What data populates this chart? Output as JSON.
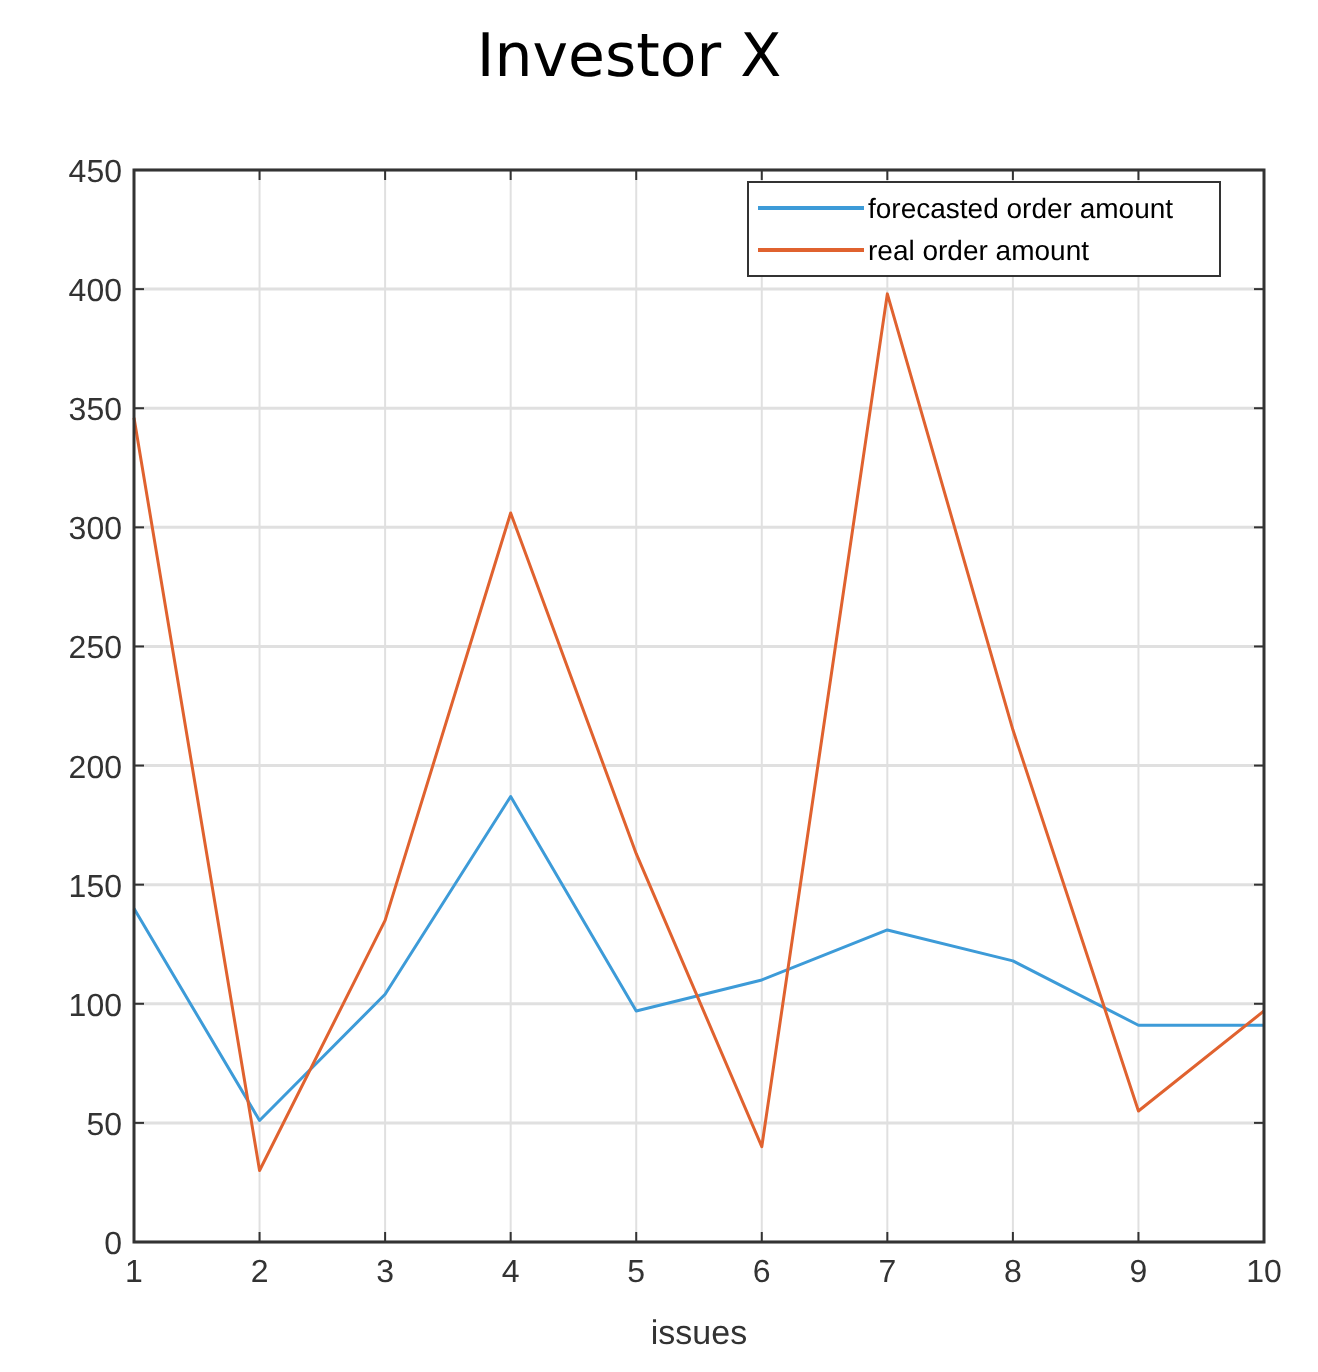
{
  "chart_data": {
    "type": "line",
    "title": "Investor X",
    "xlabel": "issues",
    "x": [
      1,
      2,
      3,
      4,
      5,
      6,
      7,
      8,
      9,
      10
    ],
    "xlim": [
      1,
      10
    ],
    "xticks": [
      1,
      2,
      3,
      4,
      5,
      6,
      7,
      8,
      9,
      10
    ],
    "ylim": [
      0,
      450
    ],
    "yticks": [
      0,
      50,
      100,
      150,
      200,
      250,
      300,
      350,
      400,
      450
    ],
    "grid": true,
    "legend": "top right",
    "series": [
      {
        "name": "forecasted order amount",
        "color": "#3d9bd8",
        "values": [
          140,
          51,
          104,
          187,
          97,
          110,
          131,
          118,
          91,
          91
        ]
      },
      {
        "name": "real order amount",
        "color": "#e0622f",
        "values": [
          346,
          30,
          135,
          306,
          163,
          40,
          398,
          215,
          55,
          97
        ]
      }
    ]
  }
}
